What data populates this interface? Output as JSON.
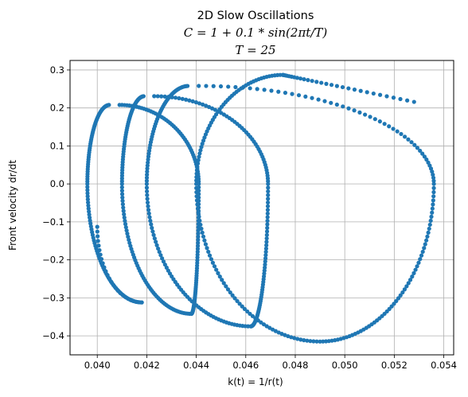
{
  "chart_data": {
    "type": "scatter",
    "title": "2D Slow Oscillations",
    "subtitle_lines": [
      "C = 1 + 0.1 * sin(2πt/T)",
      "T = 25"
    ],
    "xlabel": "k(t) = 1/r(t)",
    "ylabel": "Front velocity dr/dt",
    "xlim": [
      0.0389,
      0.0544
    ],
    "ylim": [
      -0.45,
      0.325
    ],
    "xticks": [
      0.04,
      0.042,
      0.044,
      0.046,
      0.048,
      0.05,
      0.052,
      0.054
    ],
    "xtick_labels": [
      "0.040",
      "0.042",
      "0.044",
      "0.046",
      "0.048",
      "0.050",
      "0.052",
      "0.054"
    ],
    "yticks": [
      0.3,
      0.2,
      0.1,
      0.0,
      -0.1,
      -0.2,
      -0.3,
      -0.4
    ],
    "ytick_labels": [
      "0.3",
      "0.2",
      "0.1",
      "0.0",
      "−0.1",
      "−0.2",
      "−0.3",
      "−0.4"
    ],
    "grid": true,
    "marker_color": "#1f77b4",
    "spiral": {
      "start": [
        0.0528,
        0.216
      ],
      "end": [
        0.04,
        -0.113
      ],
      "loops": [
        {
          "x_center": 0.0482,
          "x_right": 0.0536,
          "x_left": 0.044,
          "y_top": 0.287,
          "y_bottom": -0.415
        },
        {
          "x_center": 0.0444,
          "x_right": 0.0469,
          "x_left": 0.042,
          "y_top": 0.258,
          "y_bottom": -0.375
        },
        {
          "x_center": 0.0426,
          "x_right": 0.0441,
          "x_left": 0.041,
          "y_top": 0.231,
          "y_bottom": -0.342
        },
        {
          "x_center": 0.0412,
          "x_right": 0.0421,
          "x_left": 0.0396,
          "y_top": 0.208,
          "y_bottom": -0.312
        }
      ]
    }
  }
}
